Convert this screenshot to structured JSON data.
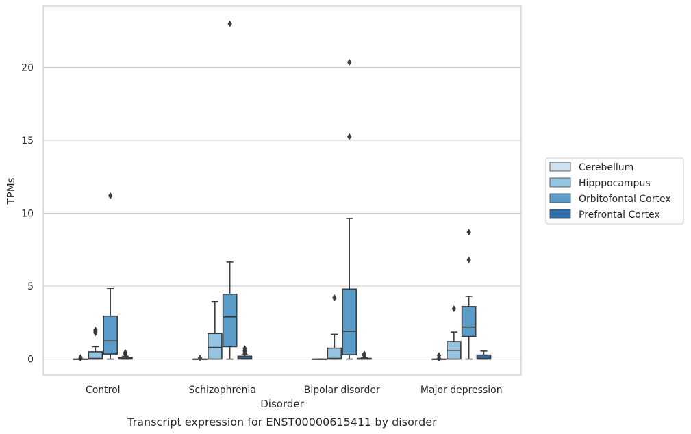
{
  "chart_data": {
    "type": "box",
    "caption": "Transcript expression for ENST00000615411 by disorder",
    "xlabel": "Disorder",
    "ylabel": "TPMs",
    "ylim": [
      -1.1,
      24.2
    ],
    "yticks": [
      0,
      5,
      10,
      15,
      20
    ],
    "grid": true,
    "legend_position": "right",
    "categories": [
      "Control",
      "Schizophrenia",
      "Bipolar disorder",
      "Major depression"
    ],
    "series": [
      {
        "name": "Cerebellum",
        "color": "#d0e1f0",
        "boxes": [
          {
            "q1": 0,
            "median": 0,
            "q3": 0,
            "whisker_low": 0,
            "whisker_high": 0,
            "outliers": [
              0.05,
              0.12
            ]
          },
          {
            "q1": 0,
            "median": 0,
            "q3": 0,
            "whisker_low": 0,
            "whisker_high": 0,
            "outliers": [
              0.08
            ]
          },
          {
            "q1": 0,
            "median": 0,
            "q3": 0,
            "whisker_low": 0,
            "whisker_high": 0,
            "outliers": []
          },
          {
            "q1": 0,
            "median": 0,
            "q3": 0,
            "whisker_low": 0,
            "whisker_high": 0,
            "outliers": [
              0.05,
              0.25
            ]
          }
        ]
      },
      {
        "name": "Hipppocampus",
        "color": "#94c4df",
        "boxes": [
          {
            "q1": 0,
            "median": 0.05,
            "q3": 0.5,
            "whisker_low": 0,
            "whisker_high": 0.85,
            "outliers": [
              1.8,
              1.9,
              2.0
            ]
          },
          {
            "q1": 0,
            "median": 0.8,
            "q3": 1.75,
            "whisker_low": 0,
            "whisker_high": 3.95,
            "outliers": []
          },
          {
            "q1": 0,
            "median": 0.05,
            "q3": 0.75,
            "whisker_low": 0,
            "whisker_high": 1.7,
            "outliers": [
              4.2
            ]
          },
          {
            "q1": 0,
            "median": 0.6,
            "q3": 1.2,
            "whisker_low": 0,
            "whisker_high": 1.85,
            "outliers": [
              3.45
            ]
          }
        ]
      },
      {
        "name": "Orbitofontal Cortex",
        "color": "#5a9bc8",
        "boxes": [
          {
            "q1": 0.35,
            "median": 1.3,
            "q3": 2.95,
            "whisker_low": 0,
            "whisker_high": 4.85,
            "outliers": [
              11.2
            ]
          },
          {
            "q1": 0.85,
            "median": 2.9,
            "q3": 4.45,
            "whisker_low": 0,
            "whisker_high": 6.65,
            "outliers": [
              23.0
            ]
          },
          {
            "q1": 0.3,
            "median": 1.9,
            "q3": 4.8,
            "whisker_low": 0,
            "whisker_high": 9.65,
            "outliers": [
              15.25,
              20.35
            ]
          },
          {
            "q1": 1.55,
            "median": 2.2,
            "q3": 3.6,
            "whisker_low": 0,
            "whisker_high": 4.3,
            "outliers": [
              6.8,
              8.7
            ]
          }
        ]
      },
      {
        "name": "Prefrontal Cortex",
        "color": "#2e6da9",
        "boxes": [
          {
            "q1": 0,
            "median": 0.05,
            "q3": 0.12,
            "whisker_low": 0,
            "whisker_high": 0.2,
            "outliers": [
              0.35,
              0.45
            ]
          },
          {
            "q1": 0,
            "median": 0.05,
            "q3": 0.2,
            "whisker_low": 0,
            "whisker_high": 0.3,
            "outliers": [
              0.4,
              0.55,
              0.72
            ]
          },
          {
            "q1": 0,
            "median": 0,
            "q3": 0.05,
            "whisker_low": 0,
            "whisker_high": 0.1,
            "outliers": [
              0.25,
              0.35
            ]
          },
          {
            "q1": 0,
            "median": 0.05,
            "q3": 0.28,
            "whisker_low": 0,
            "whisker_high": 0.55,
            "outliers": []
          }
        ]
      }
    ]
  }
}
